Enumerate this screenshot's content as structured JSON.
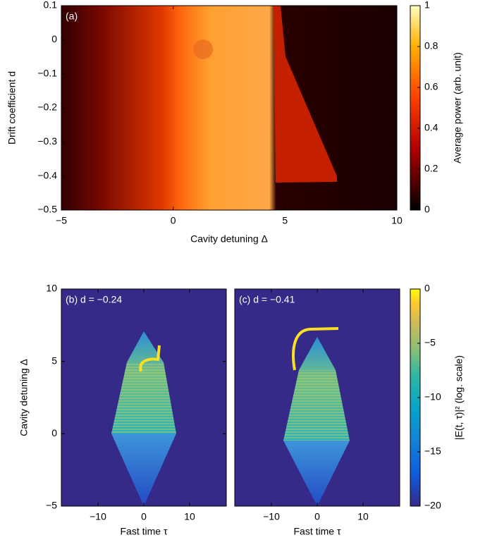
{
  "chart_data": [
    {
      "type": "heatmap",
      "panel_label": "(a)",
      "xlabel": "Cavity detuning Δ",
      "ylabel": "Drift coefficient d",
      "xlim": [
        -5,
        10
      ],
      "xticks": [
        {
          "value": -5,
          "label": "−5"
        },
        0,
        5,
        10
      ],
      "ylim": [
        -0.5,
        0.1
      ],
      "yticks": [
        {
          "value": -0.5,
          "label": "−0.5"
        },
        {
          "value": -0.4,
          "label": "−0.4"
        },
        {
          "value": -0.3,
          "label": "−0.3"
        },
        {
          "value": -0.2,
          "label": "−0.2"
        },
        {
          "value": -0.1,
          "label": "−0.1"
        },
        0,
        0.1
      ],
      "colorbar": {
        "label": "Average power (arb. unit)",
        "lim": [
          0,
          1
        ],
        "ticks": [
          0,
          0.2,
          0.4,
          0.6,
          0.8,
          1
        ]
      }
    },
    {
      "type": "heatmap",
      "panel_label": "(b) d = −0.24",
      "xlabel": "Fast time τ",
      "ylabel": "Cavity detuning Δ",
      "xlim": [
        -18,
        18
      ],
      "xticks": [
        {
          "value": -10,
          "label": "−10"
        },
        0,
        10
      ],
      "ylim": [
        -5,
        10
      ],
      "yticks": [
        {
          "value": -5,
          "label": "−5"
        },
        0,
        5,
        10
      ]
    },
    {
      "type": "heatmap",
      "panel_label": "(c) d = −0.41",
      "xlabel": "Fast time τ",
      "xlim": [
        -18,
        18
      ],
      "xticks": [
        {
          "value": -10,
          "label": "−10"
        },
        0,
        10
      ],
      "ylim": [
        -5,
        10
      ],
      "colorbar": {
        "label": "|E(t, τ)|² (log. scale)",
        "lim": [
          -20,
          0
        ],
        "ticks": [
          {
            "value": -20,
            "label": "−20"
          },
          {
            "value": -15,
            "label": "−15"
          },
          {
            "value": -10,
            "label": "−10"
          },
          {
            "value": -5,
            "label": "−5"
          },
          0
        ]
      }
    }
  ]
}
